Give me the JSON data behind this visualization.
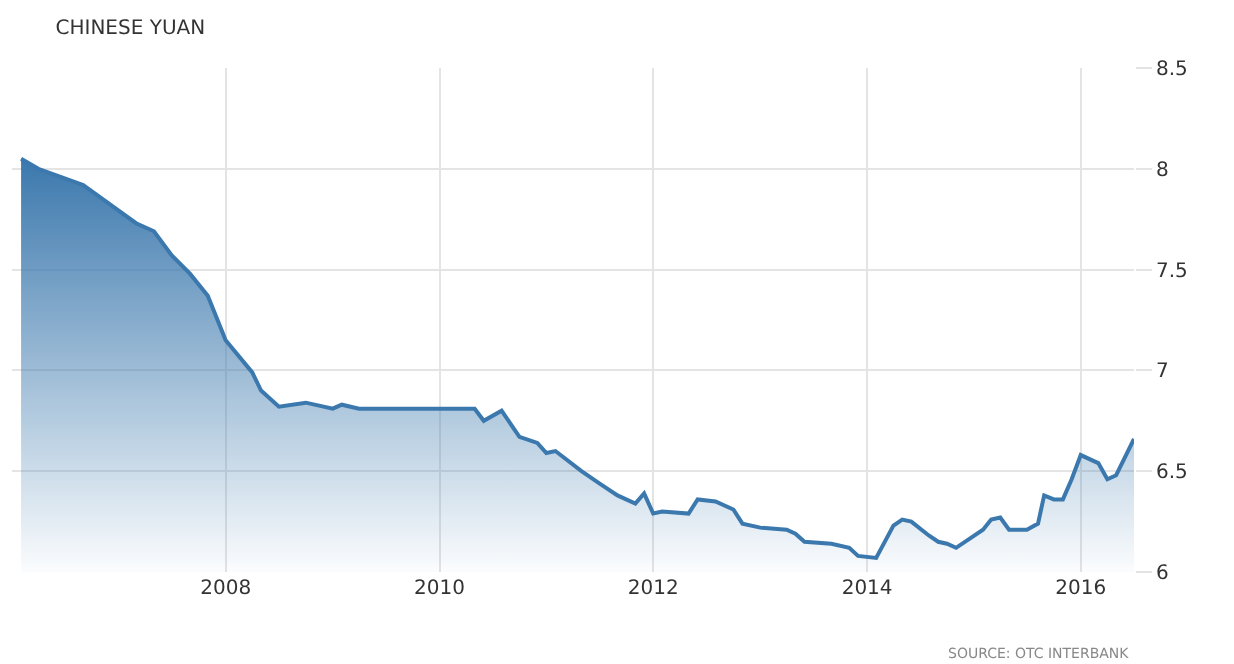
{
  "chart_data": {
    "type": "area",
    "title": "CHINESE YUAN",
    "x": [
      "2006-02",
      "2006-04",
      "2006-09",
      "2007-03",
      "2007-05",
      "2007-07",
      "2007-09",
      "2007-11",
      "2008-01",
      "2008-04",
      "2008-05",
      "2008-07",
      "2008-10",
      "2009-01",
      "2009-02",
      "2009-04",
      "2009-12",
      "2010-05",
      "2010-06",
      "2010-08",
      "2010-10",
      "2010-12",
      "2011-01",
      "2011-02",
      "2011-05",
      "2011-07",
      "2011-09",
      "2011-11",
      "2011-12",
      "2012-01",
      "2012-02",
      "2012-05",
      "2012-06",
      "2012-08",
      "2012-10",
      "2012-11",
      "2013-01",
      "2013-04",
      "2013-05",
      "2013-06",
      "2013-09",
      "2013-11",
      "2013-12",
      "2014-02",
      "2014-04",
      "2014-05",
      "2014-06",
      "2014-08",
      "2014-09",
      "2014-10",
      "2014-11",
      "2015-02",
      "2015-03",
      "2015-04",
      "2015-05",
      "2015-07",
      "2015-08-08",
      "2015-08-29",
      "2015-10",
      "2015-11",
      "2015-12",
      "2016-01",
      "2016-03",
      "2016-04",
      "2016-05",
      "2016-07"
    ],
    "series": [
      {
        "color": "#3b78ad",
        "values": [
          8.05,
          8.0,
          7.92,
          7.73,
          7.69,
          7.57,
          7.48,
          7.37,
          7.15,
          6.99,
          6.9,
          6.82,
          6.84,
          6.81,
          6.83,
          6.81,
          6.81,
          6.81,
          6.75,
          6.8,
          6.67,
          6.64,
          6.59,
          6.6,
          6.5,
          6.44,
          6.38,
          6.34,
          6.39,
          6.29,
          6.3,
          6.29,
          6.36,
          6.35,
          6.31,
          6.24,
          6.22,
          6.21,
          6.19,
          6.15,
          6.14,
          6.12,
          6.08,
          6.07,
          6.23,
          6.26,
          6.25,
          6.18,
          6.15,
          6.14,
          6.12,
          6.21,
          6.26,
          6.27,
          6.21,
          6.21,
          6.24,
          6.38,
          6.36,
          6.36,
          6.46,
          6.58,
          6.54,
          6.46,
          6.48,
          6.66
        ]
      }
    ],
    "xlim": [
      "2006-01",
      "2016-07"
    ],
    "xticks": [
      {
        "value": "2008-01",
        "label": "2008"
      },
      {
        "value": "2010-01",
        "label": "2010"
      },
      {
        "value": "2012-01",
        "label": "2012"
      },
      {
        "value": "2014-01",
        "label": "2014"
      },
      {
        "value": "2016-01",
        "label": "2016"
      }
    ],
    "ylim": [
      6,
      8.5
    ],
    "yticks": [
      6,
      6.5,
      7,
      7.5,
      8,
      8.5
    ],
    "grid": true,
    "annotations": [
      "SOURCE: OTC INTERBANK"
    ]
  }
}
